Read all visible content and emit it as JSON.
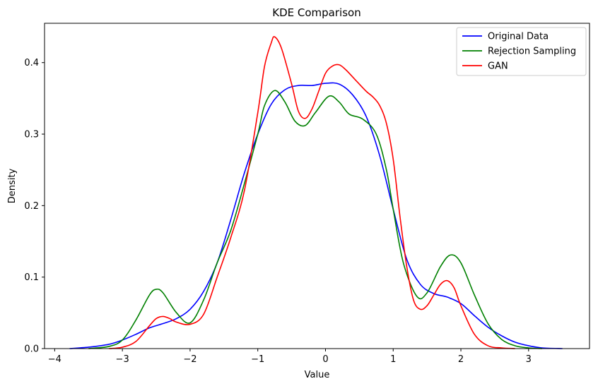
{
  "chart_data": {
    "type": "line",
    "title": "KDE Comparison",
    "xlabel": "Value",
    "ylabel": "Density",
    "xlim": [
      -4.15,
      3.9
    ],
    "ylim": [
      0,
      0.455
    ],
    "xticks": [
      -4,
      -3,
      -2,
      -1,
      0,
      1,
      2,
      3
    ],
    "yticks": [
      0.0,
      0.1,
      0.2,
      0.3,
      0.4
    ],
    "xtick_labels": [
      "−4",
      "−3",
      "−2",
      "−1",
      "0",
      "1",
      "2",
      "3"
    ],
    "ytick_labels": [
      "0.0",
      "0.1",
      "0.2",
      "0.3",
      "0.4"
    ],
    "grid": false,
    "legend_position": "top-right",
    "series": [
      {
        "name": "Original Data",
        "color": "#0000ff",
        "x": [
          -3.78,
          -3.5,
          -3.2,
          -3.0,
          -2.8,
          -2.6,
          -2.4,
          -2.2,
          -2.0,
          -1.8,
          -1.6,
          -1.4,
          -1.2,
          -1.0,
          -0.8,
          -0.6,
          -0.4,
          -0.2,
          0.0,
          0.2,
          0.4,
          0.6,
          0.8,
          1.0,
          1.2,
          1.4,
          1.6,
          1.8,
          2.0,
          2.2,
          2.4,
          2.6,
          2.8,
          3.0,
          3.2,
          3.5
        ],
        "y": [
          0.0,
          0.002,
          0.006,
          0.012,
          0.02,
          0.029,
          0.035,
          0.042,
          0.055,
          0.08,
          0.12,
          0.18,
          0.245,
          0.3,
          0.342,
          0.362,
          0.368,
          0.368,
          0.371,
          0.37,
          0.355,
          0.325,
          0.27,
          0.195,
          0.125,
          0.09,
          0.077,
          0.072,
          0.063,
          0.046,
          0.03,
          0.018,
          0.009,
          0.004,
          0.001,
          0.0
        ]
      },
      {
        "name": "Rejection Sampling",
        "color": "#008000",
        "x": [
          -3.5,
          -3.2,
          -3.0,
          -2.8,
          -2.6,
          -2.5,
          -2.4,
          -2.2,
          -2.0,
          -1.8,
          -1.6,
          -1.4,
          -1.2,
          -1.0,
          -0.9,
          -0.75,
          -0.6,
          -0.45,
          -0.3,
          -0.15,
          0.05,
          0.2,
          0.35,
          0.55,
          0.75,
          0.9,
          1.0,
          1.15,
          1.35,
          1.5,
          1.7,
          1.85,
          2.0,
          2.2,
          2.4,
          2.6,
          2.8,
          3.0,
          3.2
        ],
        "y": [
          0.0,
          0.003,
          0.012,
          0.04,
          0.075,
          0.083,
          0.078,
          0.05,
          0.036,
          0.068,
          0.12,
          0.165,
          0.23,
          0.3,
          0.34,
          0.361,
          0.345,
          0.318,
          0.312,
          0.33,
          0.353,
          0.345,
          0.328,
          0.321,
          0.3,
          0.25,
          0.195,
          0.12,
          0.073,
          0.078,
          0.115,
          0.131,
          0.12,
          0.075,
          0.035,
          0.013,
          0.004,
          0.001,
          0.0
        ]
      },
      {
        "name": "GAN",
        "color": "#ff0000",
        "x": [
          -3.2,
          -3.0,
          -2.8,
          -2.6,
          -2.5,
          -2.4,
          -2.3,
          -2.2,
          -2.0,
          -1.8,
          -1.6,
          -1.4,
          -1.2,
          -1.0,
          -0.9,
          -0.8,
          -0.75,
          -0.65,
          -0.5,
          -0.4,
          -0.3,
          -0.2,
          -0.1,
          0.0,
          0.1,
          0.2,
          0.3,
          0.45,
          0.6,
          0.7,
          0.8,
          0.9,
          1.0,
          1.1,
          1.2,
          1.3,
          1.4,
          1.5,
          1.6,
          1.7,
          1.8,
          1.9,
          2.0,
          2.2,
          2.4,
          2.6,
          2.8
        ],
        "y": [
          0.0,
          0.002,
          0.01,
          0.032,
          0.042,
          0.045,
          0.042,
          0.037,
          0.034,
          0.048,
          0.1,
          0.155,
          0.22,
          0.33,
          0.395,
          0.428,
          0.436,
          0.42,
          0.37,
          0.332,
          0.322,
          0.335,
          0.36,
          0.385,
          0.395,
          0.397,
          0.39,
          0.375,
          0.36,
          0.352,
          0.34,
          0.315,
          0.265,
          0.185,
          0.115,
          0.068,
          0.055,
          0.06,
          0.075,
          0.09,
          0.095,
          0.085,
          0.06,
          0.02,
          0.004,
          0.001,
          0.0
        ]
      }
    ]
  }
}
